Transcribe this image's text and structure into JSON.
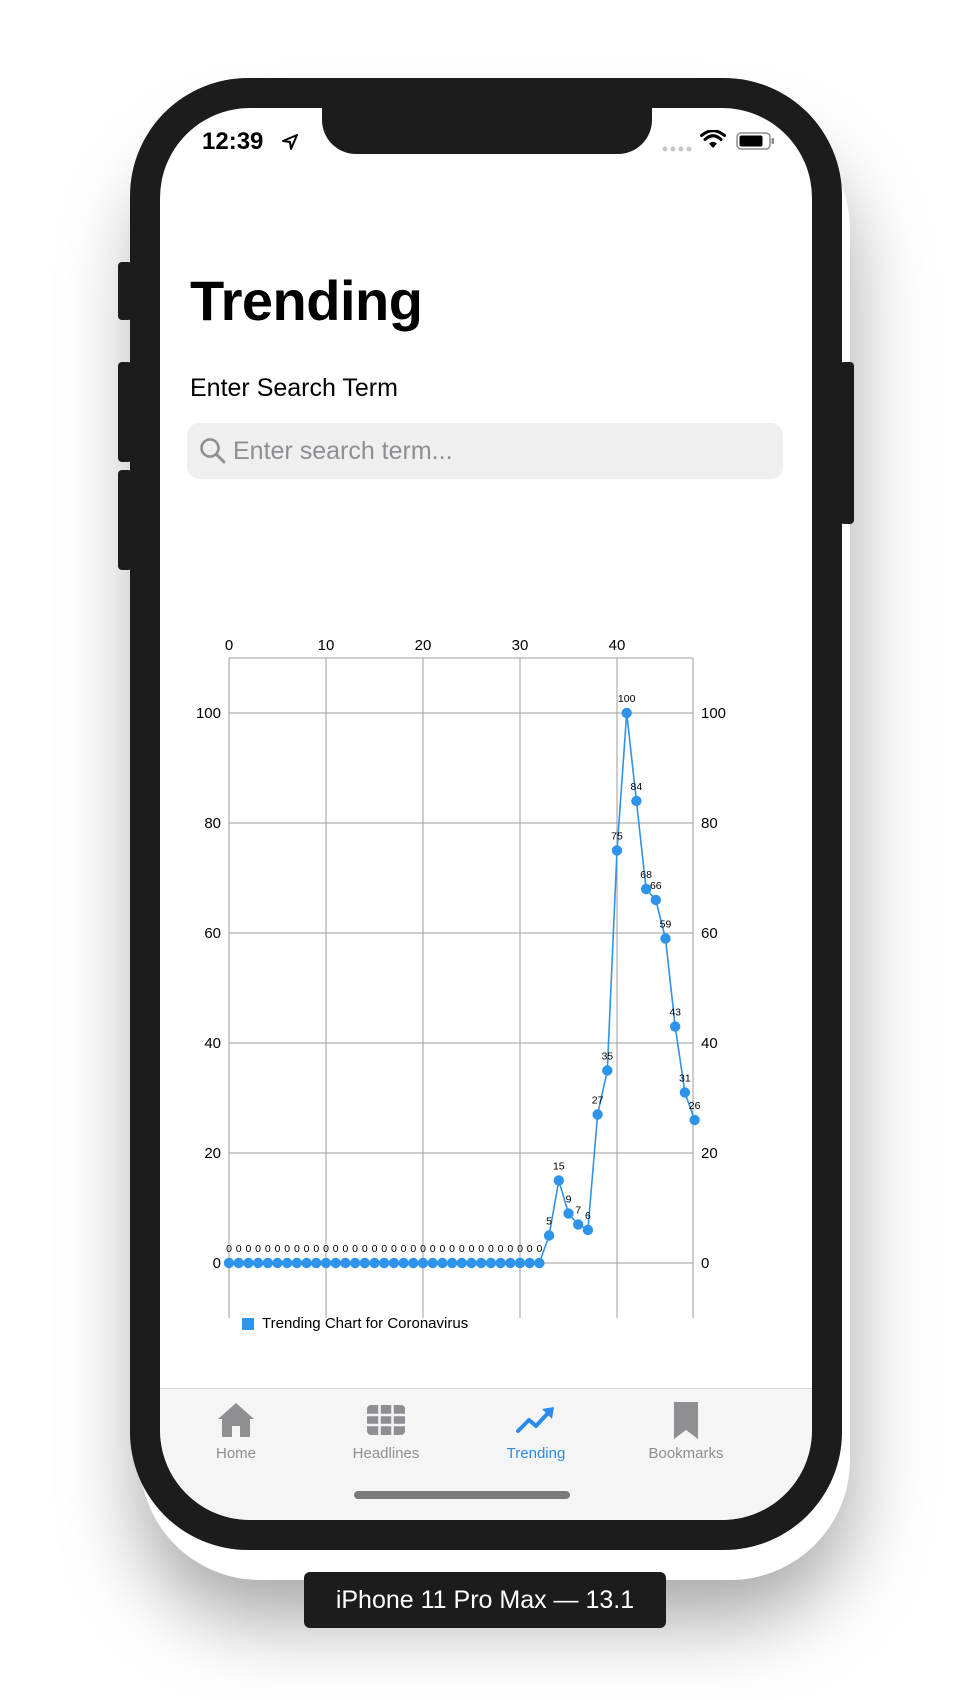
{
  "status_bar": {
    "time": "12:39",
    "icons": [
      "location-arrow-icon",
      "cellular-signal-icon",
      "wifi-icon",
      "battery-icon"
    ]
  },
  "page": {
    "title": "Trending"
  },
  "search": {
    "label": "Enter Search Term",
    "placeholder": "Enter search term...",
    "value": ""
  },
  "chart_data": {
    "type": "line",
    "color": "#2e93ea",
    "x": [
      0,
      1,
      2,
      3,
      4,
      5,
      6,
      7,
      8,
      9,
      10,
      11,
      12,
      13,
      14,
      15,
      16,
      17,
      18,
      19,
      20,
      21,
      22,
      23,
      24,
      25,
      26,
      27,
      28,
      29,
      30,
      31,
      32,
      33,
      34,
      35,
      36,
      37,
      38,
      39,
      40,
      41,
      42,
      43,
      44,
      45,
      46,
      47,
      48
    ],
    "series": [
      {
        "name": "Trending Chart for Coronavirus",
        "values": [
          0,
          0,
          0,
          0,
          0,
          0,
          0,
          0,
          0,
          0,
          0,
          0,
          0,
          0,
          0,
          0,
          0,
          0,
          0,
          0,
          0,
          0,
          0,
          0,
          0,
          0,
          0,
          0,
          0,
          0,
          0,
          0,
          0,
          5,
          15,
          9,
          7,
          6,
          27,
          35,
          75,
          100,
          84,
          68,
          66,
          59,
          43,
          31,
          26
        ]
      }
    ],
    "x_ticks": [
      "0",
      "10",
      "20",
      "30",
      "40"
    ],
    "y_ticks": [
      "0",
      "20",
      "40",
      "60",
      "80",
      "100"
    ],
    "xlim": [
      0,
      48
    ],
    "ylim": [
      -10,
      110
    ],
    "grid": true,
    "legend_position": "bottom-left"
  },
  "tab_bar": {
    "tabs": [
      {
        "label": "Home",
        "icon": "home-icon",
        "active": false
      },
      {
        "label": "Headlines",
        "icon": "grid-icon",
        "active": false
      },
      {
        "label": "Trending",
        "icon": "trending-up-icon",
        "active": true
      },
      {
        "label": "Bookmarks",
        "icon": "bookmark-icon",
        "active": false
      }
    ]
  },
  "device_caption": "iPhone 11 Pro Max — 13.1",
  "colors": {
    "accent": "#2c8bea",
    "inactive": "#8e8e93",
    "line": "#2e93ea"
  }
}
